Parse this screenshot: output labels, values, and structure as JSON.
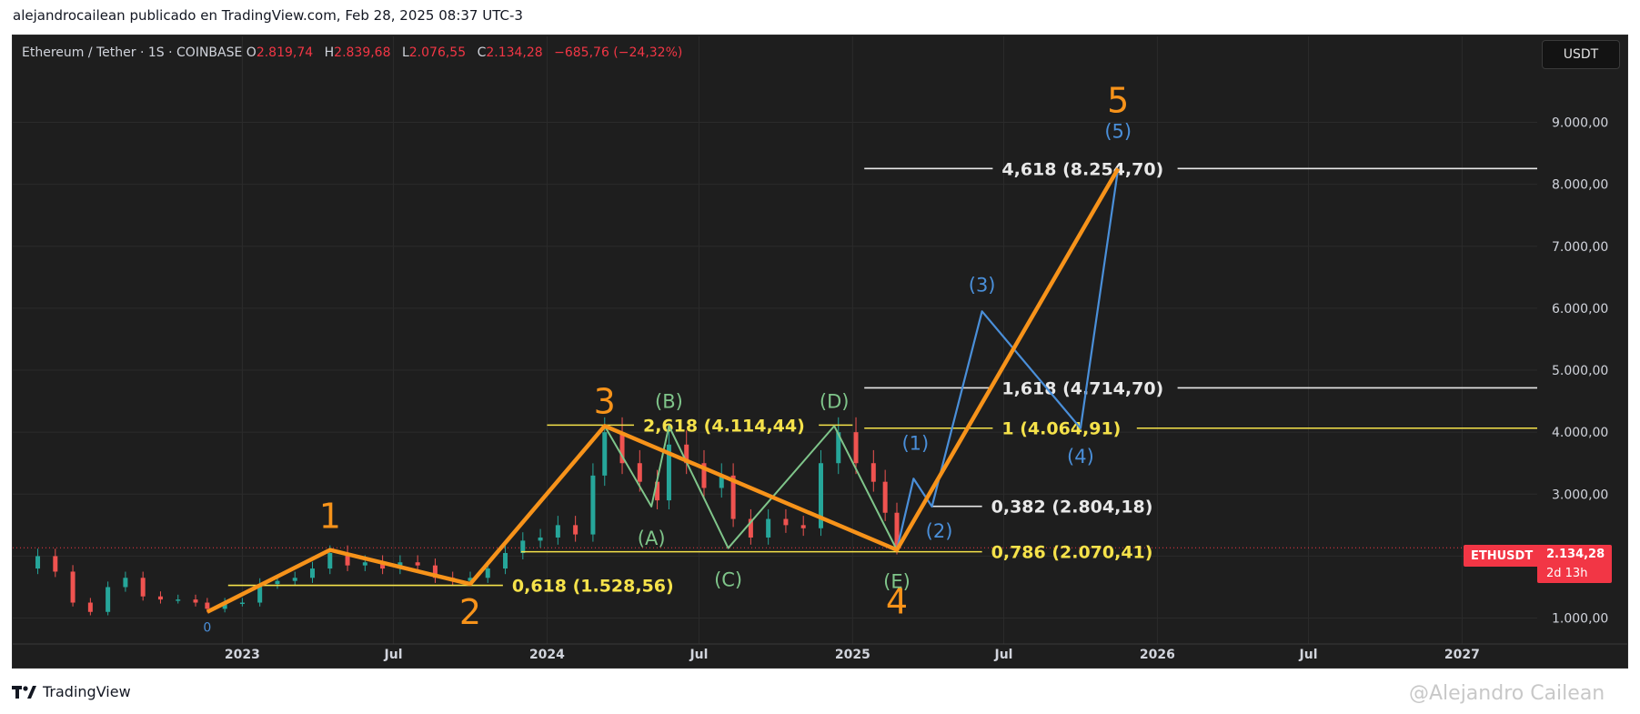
{
  "page": {
    "topline": "alejandrocailean publicado en TradingView.com, Feb 28, 2025 08:37 UTC-3",
    "footer_brand": "TradingView",
    "watermark": "@Alejandro Cailean"
  },
  "header": {
    "symbol": "Ethereum / Tether · 1S · COINBASE",
    "open_key": "O",
    "open": "2.819,74",
    "high_key": "H",
    "high": "2.839,68",
    "low_key": "L",
    "low": "2.076,55",
    "close_key": "C",
    "close": "2.134,28",
    "change": "−685,76 (−24,32%)"
  },
  "currency_button": "USDT",
  "price_badge": {
    "symbol": "ETHUSDT",
    "price": "2.134,28",
    "countdown": "2d 13h"
  },
  "colors": {
    "background": "#1e1e1e",
    "up": "#26a69a",
    "down": "#ef5350",
    "accent_orange": "#f7931a",
    "accent_blue": "#4a8fd9",
    "accent_green": "#7fc58a",
    "fib_yellow": "#f5e24a",
    "fib_white": "#e8e8e8"
  },
  "chart_data": {
    "type": "line",
    "title": "",
    "xlabel": "",
    "ylabel": "",
    "x_ticks": [
      "2023",
      "Jul",
      "2024",
      "Jul",
      "2025",
      "Jul",
      "2026",
      "Jul",
      "2027"
    ],
    "y_ticks": [
      "1.000,00",
      "2.000,00",
      "3.000,00",
      "4.000,00",
      "5.000,00",
      "6.000,00",
      "7.000,00",
      "8.000,00",
      "9.000,00"
    ],
    "ylim": [
      700,
      9800
    ],
    "xlim": [
      "2022-04",
      "2027-04"
    ],
    "grid": true,
    "price_series": {
      "name": "ETHUSDT weekly",
      "points": [
        [
          "2022-04-10",
          1800
        ],
        [
          "2022-05-01",
          2000
        ],
        [
          "2022-05-22",
          1750
        ],
        [
          "2022-06-12",
          1250
        ],
        [
          "2022-07-03",
          1100
        ],
        [
          "2022-07-24",
          1500
        ],
        [
          "2022-08-14",
          1650
        ],
        [
          "2022-09-04",
          1350
        ],
        [
          "2022-09-25",
          1300
        ],
        [
          "2022-10-16",
          1300
        ],
        [
          "2022-11-06",
          1250
        ],
        [
          "2022-11-20",
          1150
        ],
        [
          "2022-12-11",
          1250
        ],
        [
          "2023-01-01",
          1250
        ],
        [
          "2023-01-22",
          1550
        ],
        [
          "2023-02-12",
          1600
        ],
        [
          "2023-03-05",
          1650
        ],
        [
          "2023-03-26",
          1800
        ],
        [
          "2023-04-16",
          2050
        ],
        [
          "2023-05-07",
          1850
        ],
        [
          "2023-05-28",
          1900
        ],
        [
          "2023-06-18",
          1800
        ],
        [
          "2023-07-09",
          1900
        ],
        [
          "2023-07-30",
          1850
        ],
        [
          "2023-08-20",
          1650
        ],
        [
          "2023-09-10",
          1600
        ],
        [
          "2023-10-01",
          1650
        ],
        [
          "2023-10-22",
          1800
        ],
        [
          "2023-11-12",
          2050
        ],
        [
          "2023-12-03",
          2250
        ],
        [
          "2023-12-24",
          2300
        ],
        [
          "2024-01-14",
          2500
        ],
        [
          "2024-02-04",
          2350
        ],
        [
          "2024-02-25",
          3300
        ],
        [
          "2024-03-10",
          4000
        ],
        [
          "2024-03-31",
          3500
        ],
        [
          "2024-04-21",
          3200
        ],
        [
          "2024-05-12",
          2900
        ],
        [
          "2024-05-26",
          3800
        ],
        [
          "2024-06-16",
          3500
        ],
        [
          "2024-07-07",
          3100
        ],
        [
          "2024-07-28",
          3300
        ],
        [
          "2024-08-11",
          2600
        ],
        [
          "2024-09-01",
          2300
        ],
        [
          "2024-09-22",
          2600
        ],
        [
          "2024-10-13",
          2500
        ],
        [
          "2024-11-03",
          2450
        ],
        [
          "2024-11-24",
          3500
        ],
        [
          "2024-12-15",
          4000
        ],
        [
          "2025-01-05",
          3500
        ],
        [
          "2025-01-26",
          3200
        ],
        [
          "2025-02-09",
          2700
        ],
        [
          "2025-02-23",
          2134
        ]
      ]
    },
    "elliott_primary": {
      "name": "",
      "points": [
        [
          "2022-11-20",
          1100
        ],
        [
          "2023-04-16",
          2100
        ],
        [
          "2023-10-01",
          1550
        ],
        [
          "2024-03-10",
          4100
        ],
        [
          "2025-02-23",
          2100
        ],
        [
          "2025-11-15",
          8254
        ]
      ],
      "labels": [
        "",
        "1",
        "2",
        "3",
        "4",
        "5"
      ]
    },
    "elliott_projection": {
      "name": "",
      "points": [
        [
          "2025-02-23",
          2100
        ],
        [
          "2025-03-15",
          3250
        ],
        [
          "2025-04-06",
          2800
        ],
        [
          "2025-06-05",
          5950
        ],
        [
          "2025-10-01",
          4064
        ],
        [
          "2025-11-15",
          8254
        ]
      ],
      "labels": [
        "",
        "(1)",
        "(2)",
        "(3)",
        "(4)",
        "(5)"
      ]
    },
    "triangle_abcde": {
      "name": "",
      "points": [
        [
          "2024-03-10",
          4100
        ],
        [
          "2024-05-05",
          2800
        ],
        [
          "2024-05-26",
          4100
        ],
        [
          "2024-08-05",
          2130
        ],
        [
          "2024-12-10",
          4100
        ],
        [
          "2025-02-23",
          2100
        ]
      ],
      "labels": [
        "",
        "(A)",
        "(B)",
        "(C)",
        "(D)",
        "(E)"
      ]
    },
    "fib_levels": [
      {
        "label": "0,618 (1.528,56)",
        "value": 1528.56,
        "color": "#f5e24a",
        "x_start": "2022-12-15",
        "x_end": "2024-01-20"
      },
      {
        "label": "2,618 (4.114,44)",
        "value": 4114.44,
        "color": "#f5e24a",
        "x_start": "2024-01-01",
        "x_end": "2025-01-01"
      },
      {
        "label": "0,786 (2.070,41)",
        "value": 2070.41,
        "color": "#f5e24a",
        "x_start": "2023-12-01",
        "x_end": "2025-06-05"
      },
      {
        "label": "0,382 (2.804,18)",
        "value": 2804.18,
        "color": "#e8e8e8",
        "x_start": "2025-04-06",
        "x_end": "2025-06-05"
      },
      {
        "label": "1 (4.064,91)",
        "value": 4064.91,
        "color": "#f5e24a",
        "x_start": "2025-01-15",
        "x_end": "2027-04-01"
      },
      {
        "label": "1,618 (4.714,70)",
        "value": 4714.7,
        "color": "#e8e8e8",
        "x_start": "2025-01-15",
        "x_end": "2027-04-01"
      },
      {
        "label": "4,618 (8.254,70)",
        "value": 8254.7,
        "color": "#e8e8e8",
        "x_start": "2025-01-15",
        "x_end": "2027-04-01"
      }
    ],
    "last_price": 2134.28
  }
}
